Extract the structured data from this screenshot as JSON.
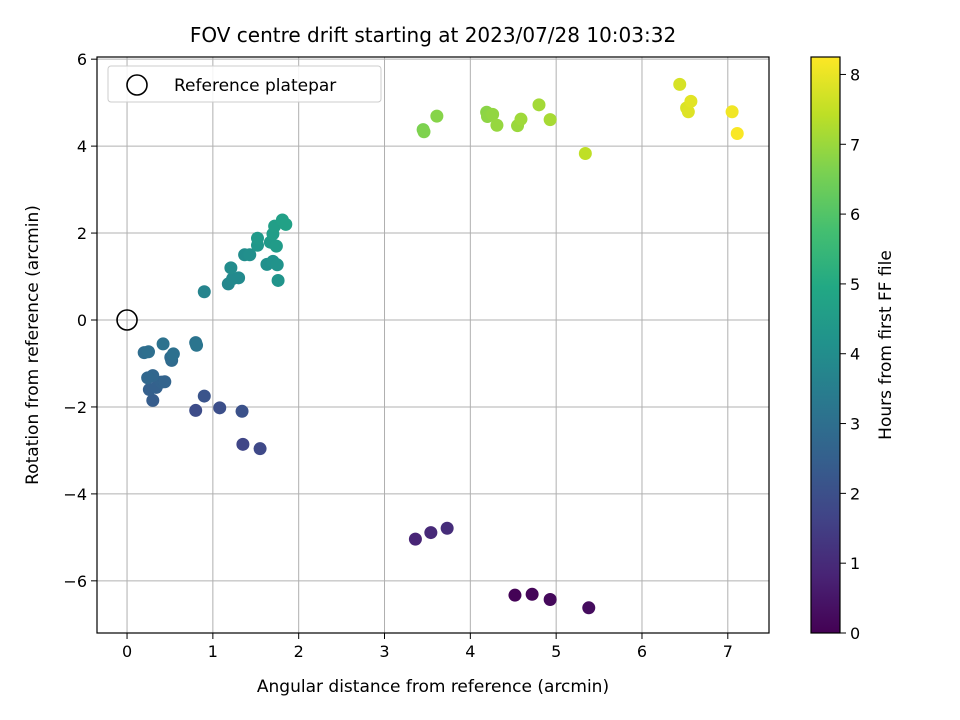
{
  "chart_data": {
    "type": "scatter",
    "title": "FOV centre drift starting at 2023/07/28 10:03:32",
    "xlabel": "Angular distance from reference (arcmin)",
    "ylabel": "Rotation from reference (arcmin)",
    "xlim": [
      -0.35,
      7.48
    ],
    "ylim": [
      -7.2,
      6.05
    ],
    "xticks": [
      0,
      1,
      2,
      3,
      4,
      5,
      6,
      7
    ],
    "yticks": [
      -6,
      -4,
      -2,
      0,
      2,
      4,
      6
    ],
    "grid": true,
    "legend": {
      "position": "top-left",
      "entries": [
        "Reference platepar"
      ]
    },
    "reference_point": {
      "x": 0,
      "y": 0
    },
    "colorbar": {
      "label": "Hours from first FF file",
      "colormap": "viridis",
      "range": [
        0,
        8.25
      ],
      "ticks": [
        0,
        1,
        2,
        3,
        4,
        5,
        6,
        7,
        8
      ]
    },
    "points": [
      {
        "x": 4.52,
        "y": -6.33,
        "c": 0.05
      },
      {
        "x": 4.72,
        "y": -6.31,
        "c": 0.12
      },
      {
        "x": 4.93,
        "y": -6.43,
        "c": 0.18
      },
      {
        "x": 5.38,
        "y": -6.62,
        "c": 0.25
      },
      {
        "x": 3.36,
        "y": -5.04,
        "c": 0.85
      },
      {
        "x": 3.54,
        "y": -4.89,
        "c": 0.95
      },
      {
        "x": 3.73,
        "y": -4.79,
        "c": 1.05
      },
      {
        "x": 1.35,
        "y": -2.86,
        "c": 1.7
      },
      {
        "x": 1.55,
        "y": -2.96,
        "c": 1.8
      },
      {
        "x": 0.8,
        "y": -2.08,
        "c": 1.9
      },
      {
        "x": 1.08,
        "y": -2.02,
        "c": 2.0
      },
      {
        "x": 1.34,
        "y": -2.1,
        "c": 2.05
      },
      {
        "x": 0.9,
        "y": -1.75,
        "c": 2.15
      },
      {
        "x": 0.3,
        "y": -1.85,
        "c": 2.4
      },
      {
        "x": 0.26,
        "y": -1.6,
        "c": 2.5
      },
      {
        "x": 0.34,
        "y": -1.55,
        "c": 2.55
      },
      {
        "x": 0.4,
        "y": -1.43,
        "c": 2.6
      },
      {
        "x": 0.44,
        "y": -1.42,
        "c": 2.65
      },
      {
        "x": 0.3,
        "y": -1.28,
        "c": 2.7
      },
      {
        "x": 0.24,
        "y": -1.33,
        "c": 2.75
      },
      {
        "x": 0.52,
        "y": -0.93,
        "c": 2.85
      },
      {
        "x": 0.51,
        "y": -0.86,
        "c": 2.9
      },
      {
        "x": 0.2,
        "y": -0.75,
        "c": 2.95
      },
      {
        "x": 0.25,
        "y": -0.73,
        "c": 3.0
      },
      {
        "x": 0.54,
        "y": -0.78,
        "c": 3.05
      },
      {
        "x": 0.42,
        "y": -0.55,
        "c": 3.1
      },
      {
        "x": 0.8,
        "y": -0.52,
        "c": 3.15
      },
      {
        "x": 0.81,
        "y": -0.58,
        "c": 3.2
      },
      {
        "x": 0.9,
        "y": 0.65,
        "c": 3.7
      },
      {
        "x": 1.18,
        "y": 0.83,
        "c": 3.8
      },
      {
        "x": 1.23,
        "y": 0.95,
        "c": 3.85
      },
      {
        "x": 1.3,
        "y": 0.97,
        "c": 3.9
      },
      {
        "x": 1.21,
        "y": 1.2,
        "c": 3.95
      },
      {
        "x": 1.37,
        "y": 1.5,
        "c": 4.0
      },
      {
        "x": 1.43,
        "y": 1.5,
        "c": 4.05
      },
      {
        "x": 1.63,
        "y": 1.28,
        "c": 4.1
      },
      {
        "x": 1.7,
        "y": 1.35,
        "c": 4.15
      },
      {
        "x": 1.75,
        "y": 1.27,
        "c": 4.2
      },
      {
        "x": 1.76,
        "y": 0.91,
        "c": 4.25
      },
      {
        "x": 1.52,
        "y": 1.72,
        "c": 4.35
      },
      {
        "x": 1.52,
        "y": 1.88,
        "c": 4.4
      },
      {
        "x": 1.67,
        "y": 1.79,
        "c": 4.45
      },
      {
        "x": 1.74,
        "y": 1.7,
        "c": 4.5
      },
      {
        "x": 1.7,
        "y": 1.98,
        "c": 4.55
      },
      {
        "x": 1.72,
        "y": 2.16,
        "c": 4.6
      },
      {
        "x": 1.81,
        "y": 2.3,
        "c": 4.65
      },
      {
        "x": 1.85,
        "y": 2.2,
        "c": 4.7
      },
      {
        "x": 3.45,
        "y": 4.38,
        "c": 6.6
      },
      {
        "x": 3.46,
        "y": 4.33,
        "c": 6.65
      },
      {
        "x": 3.61,
        "y": 4.69,
        "c": 6.75
      },
      {
        "x": 4.19,
        "y": 4.78,
        "c": 6.8
      },
      {
        "x": 4.2,
        "y": 4.68,
        "c": 6.85
      },
      {
        "x": 4.26,
        "y": 4.73,
        "c": 6.9
      },
      {
        "x": 4.31,
        "y": 4.48,
        "c": 6.95
      },
      {
        "x": 4.55,
        "y": 4.47,
        "c": 7.0
      },
      {
        "x": 4.59,
        "y": 4.62,
        "c": 7.05
      },
      {
        "x": 4.8,
        "y": 4.95,
        "c": 7.1
      },
      {
        "x": 4.93,
        "y": 4.61,
        "c": 7.15
      },
      {
        "x": 5.34,
        "y": 3.83,
        "c": 7.45
      },
      {
        "x": 6.44,
        "y": 5.42,
        "c": 7.75
      },
      {
        "x": 6.52,
        "y": 4.88,
        "c": 7.8
      },
      {
        "x": 6.54,
        "y": 4.79,
        "c": 7.85
      },
      {
        "x": 6.57,
        "y": 5.03,
        "c": 7.9
      },
      {
        "x": 7.05,
        "y": 4.79,
        "c": 8.1
      },
      {
        "x": 7.11,
        "y": 4.29,
        "c": 8.2
      }
    ]
  }
}
